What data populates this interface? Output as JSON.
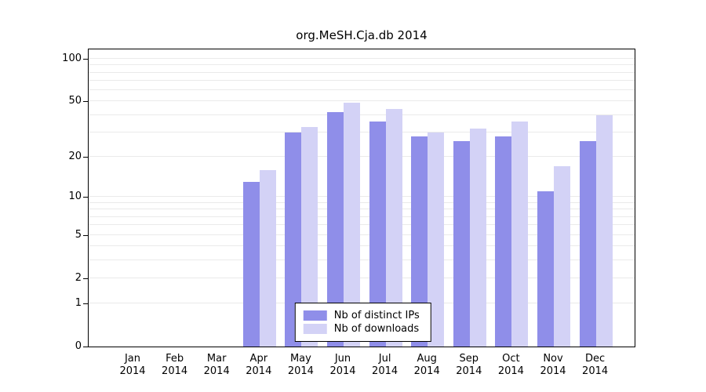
{
  "title": "org.MeSH.Cja.db 2014",
  "chart_data": {
    "type": "bar",
    "title": "org.MeSH.Cja.db 2014",
    "categories": [
      "Jan",
      "Feb",
      "Mar",
      "Apr",
      "May",
      "Jun",
      "Jul",
      "Aug",
      "Sep",
      "Oct",
      "Nov",
      "Dec"
    ],
    "category_year": "2014",
    "series": [
      {
        "name": "Nb of distinct IPs",
        "color": "#8f8ee9",
        "values": [
          0,
          0,
          0,
          13,
          30,
          42,
          36,
          28,
          26,
          28,
          11,
          26
        ]
      },
      {
        "name": "Nb of downloads",
        "color": "#d3d2f6",
        "values": [
          0,
          0,
          0,
          16,
          33,
          49,
          44,
          30,
          32,
          36,
          17,
          40
        ]
      }
    ],
    "y_ticks": [
      0,
      1,
      2,
      5,
      10,
      20,
      50,
      100
    ],
    "gridlines": [
      1,
      2,
      3,
      4,
      5,
      6,
      7,
      8,
      9,
      10,
      20,
      30,
      40,
      50,
      60,
      70,
      80,
      90,
      100
    ],
    "y_scale": "log10(1+v)",
    "y_max_log": 2.07,
    "ylim": [
      0,
      117
    ],
    "grid": "on",
    "legend_position": "bottom-center",
    "xlabel": "",
    "ylabel": ""
  },
  "colors": {
    "distinct_ips": "#8f8ee9",
    "downloads": "#d3d2f6",
    "grid": "#eaeaea",
    "axis": "#000000",
    "background": "#ffffff"
  }
}
